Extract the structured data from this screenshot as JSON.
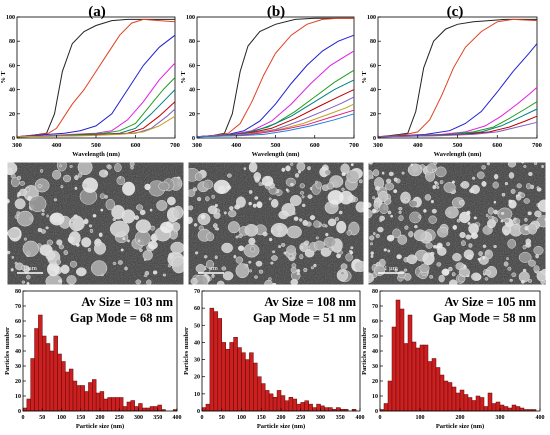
{
  "panel_labels": [
    "(a)",
    "(b)",
    "(c)"
  ],
  "sem_scale_label": "1 µm",
  "chart_data": [
    {
      "type": "line",
      "panel": "(a)",
      "xlabel": "Wavelength (nm)",
      "ylabel": "% T",
      "xlim": [
        300,
        700
      ],
      "ylim": [
        0,
        100
      ],
      "xticks": [
        300,
        400,
        500,
        600,
        700
      ],
      "yticks": [
        0,
        20,
        40,
        60,
        80,
        100
      ],
      "series": [
        {
          "color": "#222222",
          "x": [
            300,
            330,
            355,
            375,
            395,
            415,
            440,
            470,
            500,
            540,
            580,
            620,
            660,
            700
          ],
          "y": [
            1,
            2,
            3,
            4,
            20,
            55,
            78,
            88,
            93,
            97,
            98,
            98,
            98,
            98
          ]
        },
        {
          "color": "#e04020",
          "x": [
            300,
            330,
            360,
            380,
            400,
            420,
            440,
            470,
            500,
            530,
            560,
            590,
            620,
            660,
            700
          ],
          "y": [
            1,
            2,
            3,
            4,
            8,
            18,
            28,
            40,
            55,
            70,
            85,
            95,
            98,
            97,
            96
          ]
        },
        {
          "color": "#2020d0",
          "x": [
            300,
            340,
            380,
            420,
            460,
            500,
            540,
            580,
            620,
            660,
            700
          ],
          "y": [
            1,
            2,
            3,
            4,
            6,
            10,
            20,
            40,
            60,
            75,
            85
          ]
        },
        {
          "color": "#e020e0",
          "x": [
            300,
            380,
            440,
            500,
            540,
            580,
            620,
            660,
            700
          ],
          "y": [
            1,
            2,
            3,
            4,
            6,
            15,
            30,
            48,
            62
          ]
        },
        {
          "color": "#20a020",
          "x": [
            300,
            400,
            460,
            520,
            560,
            600,
            640,
            670,
            700
          ],
          "y": [
            1,
            2,
            3,
            4,
            6,
            12,
            28,
            40,
            50
          ]
        },
        {
          "color": "#008080",
          "x": [
            300,
            420,
            500,
            560,
            600,
            640,
            670,
            700
          ],
          "y": [
            1,
            2,
            3,
            4,
            8,
            20,
            30,
            40
          ]
        },
        {
          "color": "#c00000",
          "x": [
            300,
            440,
            520,
            580,
            620,
            660,
            700
          ],
          "y": [
            1,
            2,
            3,
            4,
            8,
            18,
            30
          ]
        },
        {
          "color": "#8060c0",
          "x": [
            300,
            460,
            540,
            600,
            640,
            680,
            700
          ],
          "y": [
            1,
            2,
            3,
            4,
            8,
            18,
            24
          ]
        },
        {
          "color": "#c0a020",
          "x": [
            300,
            480,
            560,
            620,
            660,
            700
          ],
          "y": [
            1,
            2,
            3,
            5,
            10,
            18
          ]
        }
      ]
    },
    {
      "type": "line",
      "panel": "(b)",
      "xlabel": "Wavelength (nm)",
      "ylabel": "% T",
      "xlim": [
        300,
        700
      ],
      "ylim": [
        0,
        100
      ],
      "xticks": [
        300,
        400,
        500,
        600,
        700
      ],
      "yticks": [
        0,
        20,
        40,
        60,
        80,
        100
      ],
      "series": [
        {
          "color": "#222222",
          "x": [
            300,
            340,
            370,
            390,
            410,
            430,
            460,
            500,
            550,
            600,
            650,
            700
          ],
          "y": [
            1,
            2,
            4,
            20,
            55,
            76,
            88,
            94,
            98,
            99,
            99,
            99
          ]
        },
        {
          "color": "#e04020",
          "x": [
            300,
            340,
            380,
            410,
            440,
            470,
            500,
            540,
            580,
            620,
            660,
            700
          ],
          "y": [
            1,
            2,
            4,
            12,
            30,
            52,
            70,
            85,
            94,
            98,
            99,
            99
          ]
        },
        {
          "color": "#2020d0",
          "x": [
            300,
            340,
            380,
            420,
            460,
            500,
            540,
            580,
            620,
            660,
            700
          ],
          "y": [
            1,
            2,
            3,
            6,
            14,
            28,
            45,
            60,
            72,
            80,
            85
          ]
        },
        {
          "color": "#e020e0",
          "x": [
            300,
            340,
            390,
            440,
            490,
            540,
            590,
            640,
            700
          ],
          "y": [
            1,
            2,
            3,
            6,
            14,
            28,
            45,
            60,
            72
          ]
        },
        {
          "color": "#20a020",
          "x": [
            300,
            350,
            400,
            450,
            500,
            550,
            600,
            650,
            700
          ],
          "y": [
            1,
            2,
            3,
            6,
            12,
            22,
            34,
            46,
            56
          ]
        },
        {
          "color": "#008080",
          "x": [
            300,
            360,
            420,
            480,
            540,
            600,
            650,
            700
          ],
          "y": [
            1,
            2,
            4,
            9,
            18,
            30,
            40,
            48
          ]
        },
        {
          "color": "#c00000",
          "x": [
            300,
            370,
            430,
            490,
            550,
            610,
            660,
            700
          ],
          "y": [
            1,
            2,
            4,
            8,
            16,
            26,
            34,
            40
          ]
        },
        {
          "color": "#8060c0",
          "x": [
            300,
            380,
            440,
            500,
            560,
            620,
            670,
            700
          ],
          "y": [
            1,
            2,
            4,
            7,
            14,
            22,
            29,
            34
          ]
        },
        {
          "color": "#c0a020",
          "x": [
            300,
            390,
            450,
            510,
            570,
            630,
            680,
            700
          ],
          "y": [
            1,
            2,
            4,
            7,
            12,
            19,
            25,
            28
          ]
        },
        {
          "color": "#e02080",
          "x": [
            300,
            400,
            460,
            520,
            580,
            640,
            700
          ],
          "y": [
            1,
            2,
            4,
            7,
            11,
            17,
            23
          ]
        },
        {
          "color": "#2080e0",
          "x": [
            300,
            410,
            470,
            530,
            590,
            650,
            700
          ],
          "y": [
            1,
            2,
            3,
            6,
            10,
            15,
            20
          ]
        }
      ]
    },
    {
      "type": "line",
      "panel": "(c)",
      "xlabel": "Wavelength (nm)",
      "ylabel": "% T",
      "xlim": [
        300,
        700
      ],
      "ylim": [
        0,
        100
      ],
      "xticks": [
        300,
        400,
        500,
        600,
        700
      ],
      "yticks": [
        0,
        20,
        40,
        60,
        80,
        100
      ],
      "series": [
        {
          "color": "#222222",
          "x": [
            300,
            330,
            355,
            375,
            395,
            415,
            440,
            470,
            500,
            540,
            580,
            620,
            660,
            700
          ],
          "y": [
            1,
            2,
            3,
            4,
            22,
            58,
            80,
            90,
            94,
            96,
            97,
            98,
            98,
            98
          ]
        },
        {
          "color": "#e04020",
          "x": [
            300,
            340,
            370,
            400,
            430,
            460,
            490,
            520,
            560,
            600,
            640,
            700
          ],
          "y": [
            1,
            2,
            3,
            5,
            15,
            35,
            58,
            75,
            88,
            96,
            98,
            97
          ]
        },
        {
          "color": "#2020d0",
          "x": [
            300,
            360,
            420,
            480,
            520,
            560,
            600,
            640,
            680,
            700
          ],
          "y": [
            1,
            2,
            3,
            6,
            12,
            22,
            38,
            55,
            70,
            78
          ]
        },
        {
          "color": "#e020e0",
          "x": [
            300,
            380,
            460,
            520,
            570,
            610,
            650,
            680,
            700
          ],
          "y": [
            1,
            2,
            3,
            5,
            10,
            18,
            28,
            36,
            42
          ]
        },
        {
          "color": "#20a020",
          "x": [
            300,
            400,
            480,
            540,
            590,
            630,
            670,
            700
          ],
          "y": [
            1,
            2,
            3,
            5,
            9,
            16,
            24,
            30
          ]
        },
        {
          "color": "#008080",
          "x": [
            300,
            420,
            500,
            560,
            610,
            650,
            700
          ],
          "y": [
            1,
            2,
            3,
            5,
            10,
            16,
            24
          ]
        },
        {
          "color": "#c00000",
          "x": [
            300,
            440,
            520,
            580,
            630,
            670,
            700
          ],
          "y": [
            1,
            2,
            3,
            5,
            9,
            14,
            18
          ]
        },
        {
          "color": "#8060c0",
          "x": [
            300,
            460,
            540,
            600,
            650,
            700
          ],
          "y": [
            1,
            2,
            3,
            5,
            9,
            13
          ]
        }
      ]
    },
    {
      "type": "bar",
      "panel": "(a)",
      "xlabel": "Particle size (nm)",
      "ylabel": "Particles number",
      "xlim": [
        0,
        400
      ],
      "ylim": [
        0,
        80
      ],
      "xticks": [
        0,
        50,
        100,
        150,
        200,
        250,
        300,
        350,
        400
      ],
      "yticks": [
        0,
        10,
        20,
        30,
        40,
        50,
        60,
        70,
        80
      ],
      "bin_width": 10,
      "x": [
        5,
        15,
        25,
        35,
        45,
        55,
        65,
        75,
        85,
        95,
        105,
        115,
        125,
        135,
        145,
        155,
        165,
        175,
        185,
        195,
        205,
        215,
        225,
        235,
        245,
        255,
        265,
        275,
        285,
        295,
        305,
        315,
        325,
        335,
        345,
        355,
        365,
        375,
        385,
        395
      ],
      "values": [
        2,
        8,
        35,
        55,
        64,
        50,
        45,
        40,
        50,
        38,
        33,
        26,
        28,
        20,
        17,
        17,
        13,
        19,
        21,
        12,
        13,
        8,
        9,
        9,
        9,
        9,
        3,
        6,
        7,
        3,
        5,
        2,
        2,
        3,
        3,
        4,
        1,
        0,
        0,
        1
      ],
      "annotations": [
        "Av Size = 103 nm",
        "Gap Mode = 68 nm"
      ]
    },
    {
      "type": "bar",
      "panel": "(b)",
      "xlabel": "Particle size (nm)",
      "ylabel": "Particles number",
      "xlim": [
        0,
        400
      ],
      "ylim": [
        0,
        70
      ],
      "xticks": [
        0,
        50,
        100,
        150,
        200,
        250,
        300,
        350,
        400
      ],
      "yticks": [
        0,
        10,
        20,
        30,
        40,
        50,
        60,
        70
      ],
      "bin_width": 10,
      "x": [
        5,
        15,
        25,
        35,
        45,
        55,
        65,
        75,
        85,
        95,
        105,
        115,
        125,
        135,
        145,
        155,
        165,
        175,
        185,
        195,
        205,
        215,
        225,
        235,
        245,
        255,
        265,
        275,
        285,
        295,
        305,
        315,
        325,
        335,
        345,
        355,
        365,
        375,
        385,
        395
      ],
      "values": [
        2,
        4,
        60,
        58,
        54,
        40,
        36,
        40,
        43,
        37,
        34,
        30,
        34,
        28,
        20,
        16,
        12,
        10,
        8,
        12,
        9,
        6,
        8,
        7,
        4,
        5,
        6,
        4,
        2,
        4,
        3,
        2,
        2,
        1,
        2,
        1,
        1,
        0,
        1,
        0
      ],
      "annotations": [
        "Av Size = 108 nm",
        "Gap Mode = 51 nm"
      ]
    },
    {
      "type": "bar",
      "panel": "(c)",
      "xlabel": "Particle size (nm)",
      "ylabel": "Particles number",
      "xlim": [
        0,
        400
      ],
      "ylim": [
        0,
        80
      ],
      "xticks": [
        0,
        100,
        200,
        300,
        400
      ],
      "yticks": [
        0,
        10,
        20,
        30,
        40,
        50,
        60,
        70,
        80
      ],
      "bin_width": 10,
      "x": [
        5,
        15,
        25,
        35,
        45,
        55,
        65,
        75,
        85,
        95,
        105,
        115,
        125,
        135,
        145,
        155,
        165,
        175,
        185,
        195,
        205,
        215,
        225,
        235,
        245,
        255,
        265,
        275,
        285,
        295,
        305,
        315,
        325,
        335,
        345,
        355,
        365,
        375,
        385,
        395
      ],
      "values": [
        1,
        5,
        20,
        56,
        74,
        68,
        45,
        64,
        46,
        42,
        44,
        44,
        33,
        35,
        29,
        24,
        20,
        19,
        16,
        12,
        14,
        11,
        9,
        7,
        10,
        9,
        3,
        12,
        5,
        6,
        4,
        3,
        2,
        4,
        3,
        2,
        1,
        1,
        1,
        0
      ],
      "annotations": [
        "Av Size = 105 nm",
        "Gap Mode = 58 nm"
      ]
    }
  ]
}
